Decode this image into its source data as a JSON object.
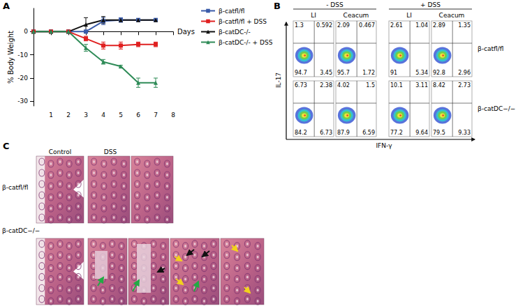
{
  "chart_data": {
    "type": "line",
    "panel_label": "A",
    "x": [
      0,
      1,
      2,
      3,
      4,
      5,
      6,
      7
    ],
    "xlim": [
      0,
      8
    ],
    "xticks": [
      1,
      2,
      3,
      4,
      5,
      6,
      7,
      8
    ],
    "ylim": [
      -32,
      10
    ],
    "yticks": [
      -30,
      -20,
      -10,
      0
    ],
    "x_label": "Days",
    "y_label": "% Body Weight",
    "grid": false,
    "legend": "right",
    "series": [
      {
        "name": "β-catfl/fl",
        "color": "#3a5ba9",
        "marker": "square",
        "values": [
          0,
          0,
          0,
          0,
          4.5,
          5,
          5,
          5
        ],
        "errors": [
          0,
          0,
          0,
          0,
          1.5,
          1,
          0.5,
          0.5
        ]
      },
      {
        "name": "β-catfl/fl + DSS",
        "color": "#e02020",
        "marker": "square",
        "values": [
          0,
          0,
          0,
          -3,
          -6,
          -6,
          -5.5,
          -5.5
        ],
        "errors": [
          0,
          0,
          0,
          1,
          1.5,
          1.5,
          1,
          1
        ]
      },
      {
        "name": "β-catDC-/-",
        "color": "#111111",
        "marker": "triangle",
        "values": [
          0,
          0,
          0,
          3,
          5,
          5,
          5,
          5
        ],
        "errors": [
          0,
          0,
          0,
          3,
          1.5,
          0.5,
          0.5,
          0.5
        ]
      },
      {
        "name": "β-catDC-/- + DSS",
        "color": "#2e8b57",
        "marker": "triangle",
        "values": [
          0,
          0,
          0,
          -7,
          -13,
          -15,
          -22,
          -22
        ],
        "errors": [
          0,
          0,
          0,
          1.5,
          1,
          0.5,
          2,
          2
        ]
      }
    ]
  },
  "panel_b": {
    "label": "B",
    "y_axis": "IL-17",
    "x_axis": "IFN-γ",
    "conditions": [
      {
        "label": "- DSS",
        "tissues": [
          "LI",
          "Ceacum"
        ]
      },
      {
        "label": "+ DSS",
        "tissues": [
          "LI",
          "Ceacum"
        ]
      }
    ],
    "rows": [
      {
        "label": "β-catfl/fl",
        "plots": [
          {
            "ul": 1.3,
            "ur": 0.592,
            "ll": 94.7,
            "lr": 3.45
          },
          {
            "ul": 2.09,
            "ur": 0.467,
            "ll": 95.7,
            "lr": 1.72
          },
          {
            "ul": 2.61,
            "ur": 1.04,
            "ll": 91,
            "lr": 5.34
          },
          {
            "ul": 2.89,
            "ur": 1.35,
            "ll": 92.8,
            "lr": 2.96
          }
        ]
      },
      {
        "label": "β-catDC−/−",
        "plots": [
          {
            "ul": 6.73,
            "ur": 2.38,
            "ll": 84.2,
            "lr": 6.73
          },
          {
            "ul": 4.02,
            "ur": 1.5,
            "ll": 87.9,
            "lr": 6.59
          },
          {
            "ul": 10.1,
            "ur": 3.11,
            "ll": 77.2,
            "lr": 9.64
          },
          {
            "ul": 8.42,
            "ur": 2.73,
            "ll": 79.5,
            "lr": 9.33
          }
        ]
      }
    ]
  },
  "panel_c": {
    "label": "C",
    "columns": [
      "Control",
      "DSS"
    ],
    "rows": [
      {
        "label": "β-catfl/fl"
      },
      {
        "label": "β-catDC−/−"
      }
    ]
  }
}
